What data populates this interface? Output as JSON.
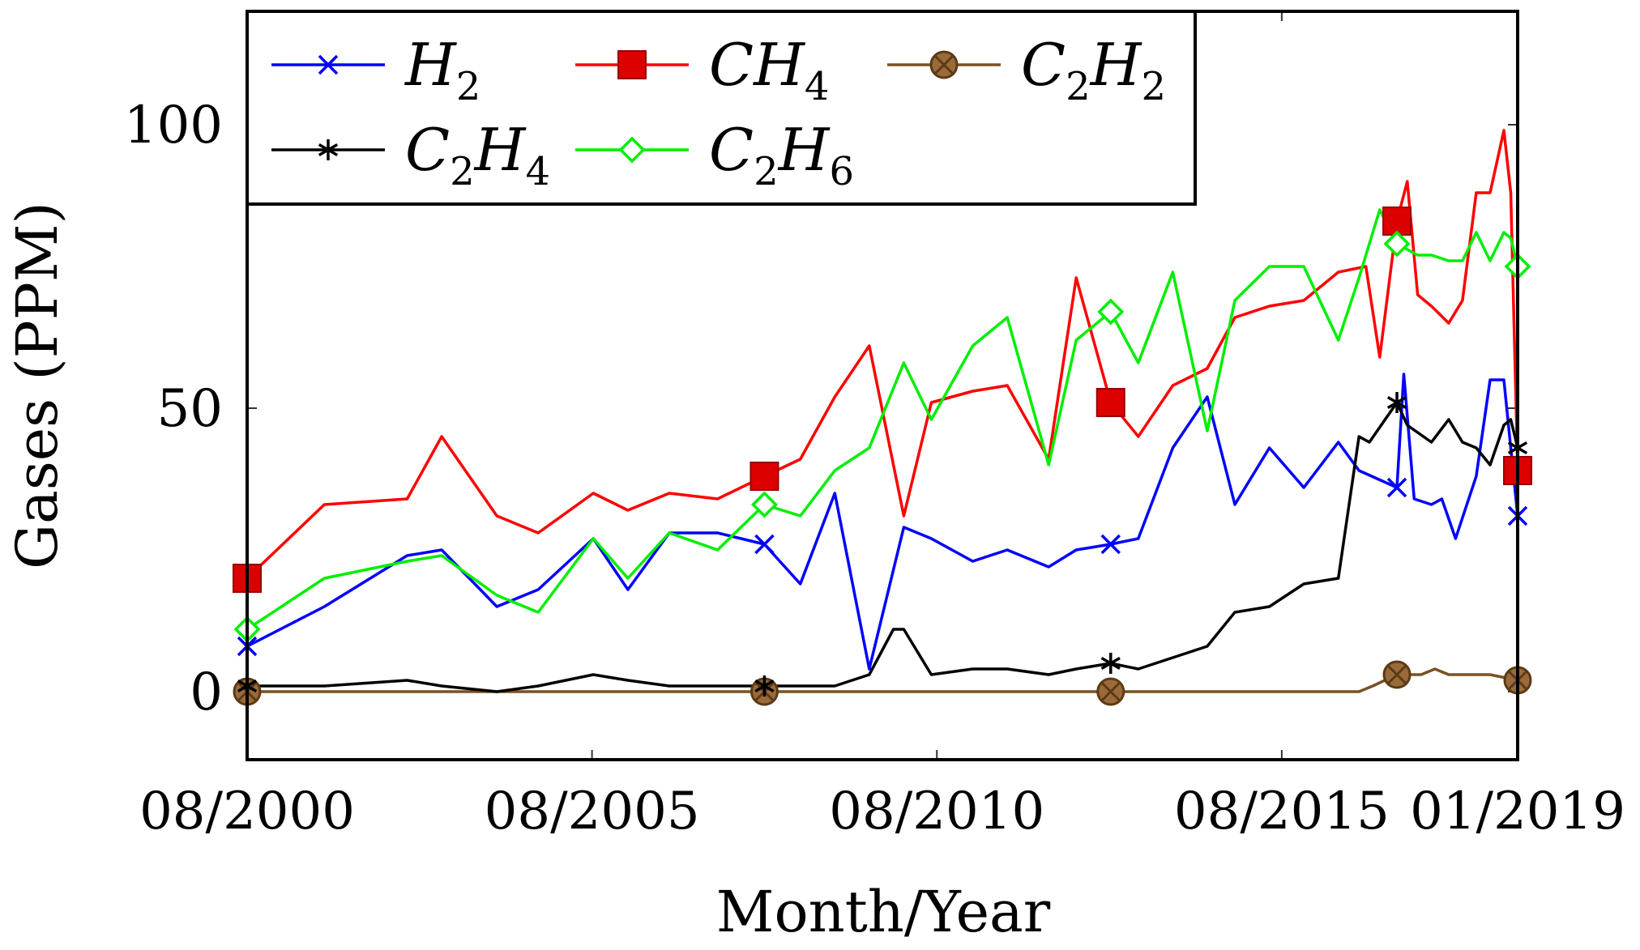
{
  "chart_data": {
    "type": "line",
    "title": "",
    "xlabel": "Month/Year",
    "ylabel": "Gases (PPM)",
    "xlim": [
      2000.58,
      2019.0
    ],
    "ylim": [
      -12,
      120
    ],
    "x_ticks": [
      {
        "value": 2000.58,
        "label": "08/2000"
      },
      {
        "value": 2005.58,
        "label": "08/2005"
      },
      {
        "value": 2010.58,
        "label": "08/2010"
      },
      {
        "value": 2015.58,
        "label": "08/2015"
      },
      {
        "value": 2019.0,
        "label": "01/2019"
      }
    ],
    "y_ticks": [
      {
        "value": 0,
        "label": "0"
      },
      {
        "value": 50,
        "label": "50"
      },
      {
        "value": 100,
        "label": "100"
      }
    ],
    "legend_position": "top-left",
    "series": [
      {
        "name": "H2",
        "legend_base": "H",
        "legend_sub": "2",
        "color": "#0000ff",
        "marker": "x",
        "marker_x": [
          2000.58,
          2008.08,
          2013.1,
          2017.25,
          2019.0
        ],
        "x": [
          2000.58,
          2001.7,
          2002.9,
          2003.4,
          2004.2,
          2004.8,
          2005.6,
          2006.1,
          2006.7,
          2007.4,
          2008.08,
          2008.6,
          2009.1,
          2009.6,
          2010.1,
          2010.5,
          2011.1,
          2011.6,
          2012.2,
          2012.6,
          2013.1,
          2013.5,
          2014.0,
          2014.5,
          2014.9,
          2015.4,
          2015.9,
          2016.4,
          2016.7,
          2017.25,
          2017.35,
          2017.5,
          2017.75,
          2017.9,
          2018.1,
          2018.4,
          2018.6,
          2018.8,
          2019.0
        ],
        "y": [
          8,
          15,
          24,
          25,
          15,
          18,
          27,
          18,
          28,
          28,
          26,
          19,
          35,
          4,
          29,
          27,
          23,
          25,
          22,
          25,
          26,
          27,
          43,
          52,
          33,
          43,
          36,
          44,
          39,
          36,
          56,
          34,
          33,
          34,
          27,
          38,
          55,
          55,
          31
        ]
      },
      {
        "name": "CH4",
        "legend_base": "CH",
        "legend_sub": "4",
        "color": "#ff0000",
        "marker": "square",
        "marker_x": [
          2000.58,
          2008.08,
          2013.1,
          2017.25,
          2019.0
        ],
        "x": [
          2000.58,
          2001.7,
          2002.9,
          2003.4,
          2004.2,
          2004.8,
          2005.6,
          2006.1,
          2006.7,
          2007.4,
          2008.08,
          2008.6,
          2009.1,
          2009.6,
          2010.1,
          2010.5,
          2011.1,
          2011.6,
          2012.2,
          2012.6,
          2013.1,
          2013.5,
          2014.0,
          2014.5,
          2014.9,
          2015.4,
          2015.9,
          2016.4,
          2016.8,
          2017.0,
          2017.25,
          2017.4,
          2017.55,
          2017.75,
          2018.0,
          2018.2,
          2018.4,
          2018.6,
          2018.8,
          2018.9,
          2019.0
        ],
        "y": [
          20,
          33,
          34,
          45,
          31,
          28,
          35,
          32,
          35,
          34,
          38,
          41,
          52,
          61,
          31,
          51,
          53,
          54,
          41,
          73,
          51,
          45,
          54,
          57,
          66,
          68,
          69,
          74,
          75,
          59,
          83,
          90,
          70,
          68,
          65,
          69,
          88,
          88,
          99,
          88,
          39
        ]
      },
      {
        "name": "C2H2",
        "legend_base": "C",
        "legend_sub": "2",
        "legend_base2": "H",
        "legend_sub2": "2",
        "color": "#7a5124",
        "marker": "circle-x",
        "marker_x": [
          2000.58,
          2008.08,
          2013.1,
          2017.25,
          2019.0
        ],
        "x": [
          2000.58,
          2004.0,
          2008.08,
          2010.0,
          2013.1,
          2015.0,
          2016.7,
          2016.9,
          2017.25,
          2017.6,
          2017.8,
          2018.0,
          2018.3,
          2018.6,
          2019.0
        ],
        "y": [
          0,
          0,
          0,
          0,
          0,
          0,
          0,
          1,
          3,
          3,
          4,
          3,
          3,
          3,
          2
        ]
      },
      {
        "name": "C2H4",
        "legend_base": "C",
        "legend_sub": "2",
        "legend_base2": "H",
        "legend_sub2": "4",
        "color": "#000000",
        "marker": "star",
        "marker_x": [
          2000.58,
          2008.08,
          2013.1,
          2017.25,
          2019.0
        ],
        "x": [
          2000.58,
          2001.7,
          2002.9,
          2003.4,
          2004.2,
          2004.8,
          2005.6,
          2006.1,
          2006.7,
          2007.4,
          2008.08,
          2008.6,
          2009.1,
          2009.6,
          2009.95,
          2010.1,
          2010.5,
          2011.1,
          2011.6,
          2012.2,
          2012.6,
          2013.1,
          2013.5,
          2014.0,
          2014.5,
          2014.9,
          2015.4,
          2015.9,
          2016.4,
          2016.7,
          2016.85,
          2017.25,
          2017.4,
          2017.75,
          2018.0,
          2018.2,
          2018.4,
          2018.6,
          2018.8,
          2018.9,
          2019.0
        ],
        "y": [
          1,
          1,
          2,
          1,
          0,
          1,
          3,
          2,
          1,
          1,
          1,
          1,
          1,
          3,
          11,
          11,
          3,
          4,
          4,
          3,
          4,
          5,
          4,
          6,
          8,
          14,
          15,
          19,
          20,
          45,
          44,
          51,
          47,
          44,
          48,
          44,
          43,
          40,
          47,
          48,
          43
        ]
      },
      {
        "name": "C2H6",
        "legend_base": "C",
        "legend_sub": "2",
        "legend_base2": "H",
        "legend_sub2": "6",
        "color": "#00ee00",
        "marker": "diamond",
        "marker_x": [
          2000.58,
          2008.08,
          2013.1,
          2017.25,
          2019.0
        ],
        "x": [
          2000.58,
          2001.7,
          2002.9,
          2003.4,
          2004.2,
          2004.8,
          2005.6,
          2006.1,
          2006.7,
          2007.4,
          2008.08,
          2008.6,
          2009.1,
          2009.6,
          2010.1,
          2010.5,
          2011.1,
          2011.6,
          2012.2,
          2012.6,
          2013.1,
          2013.5,
          2014.0,
          2014.5,
          2014.9,
          2015.4,
          2015.9,
          2016.4,
          2016.7,
          2017.0,
          2017.25,
          2017.55,
          2017.75,
          2018.0,
          2018.2,
          2018.4,
          2018.6,
          2018.8,
          2018.9,
          2019.0
        ],
        "y": [
          11,
          20,
          23,
          24,
          17,
          14,
          27,
          20,
          28,
          25,
          33,
          31,
          39,
          43,
          58,
          48,
          61,
          66,
          40,
          62,
          67,
          58,
          74,
          46,
          69,
          75,
          75,
          62,
          73,
          85,
          79,
          77,
          77,
          76,
          76,
          81,
          76,
          81,
          80,
          75
        ]
      }
    ]
  }
}
